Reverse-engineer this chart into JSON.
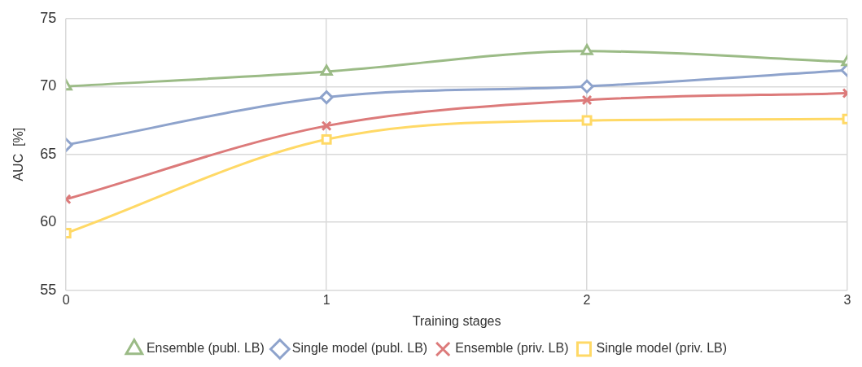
{
  "chart_data": {
    "type": "line",
    "xlabel": "Training stages",
    "ylabel": "AUC  [%]",
    "x": [
      0,
      1,
      2,
      3
    ],
    "xlim": [
      0,
      3
    ],
    "xticks": [
      0,
      1,
      2,
      3
    ],
    "ylim": [
      55,
      75
    ],
    "yticks": [
      55,
      60,
      65,
      70,
      75
    ],
    "grid": true,
    "legend": "bottom",
    "series": [
      {
        "name": "Ensemble (publ. LB)",
        "color": "#9bbb86",
        "marker": "triangle",
        "values": [
          70.0,
          71.1,
          72.6,
          71.8
        ]
      },
      {
        "name": "Single model (publ. LB)",
        "color": "#8ea3cc",
        "marker": "diamond",
        "values": [
          65.7,
          69.2,
          70.0,
          71.2
        ]
      },
      {
        "name": "Ensemble (priv. LB)",
        "color": "#dc7a7a",
        "marker": "cross",
        "values": [
          61.7,
          67.1,
          69.0,
          69.5
        ]
      },
      {
        "name": "Single model (priv. LB)",
        "color": "#ffd966",
        "marker": "square",
        "values": [
          59.2,
          66.1,
          67.5,
          67.6
        ]
      }
    ]
  }
}
